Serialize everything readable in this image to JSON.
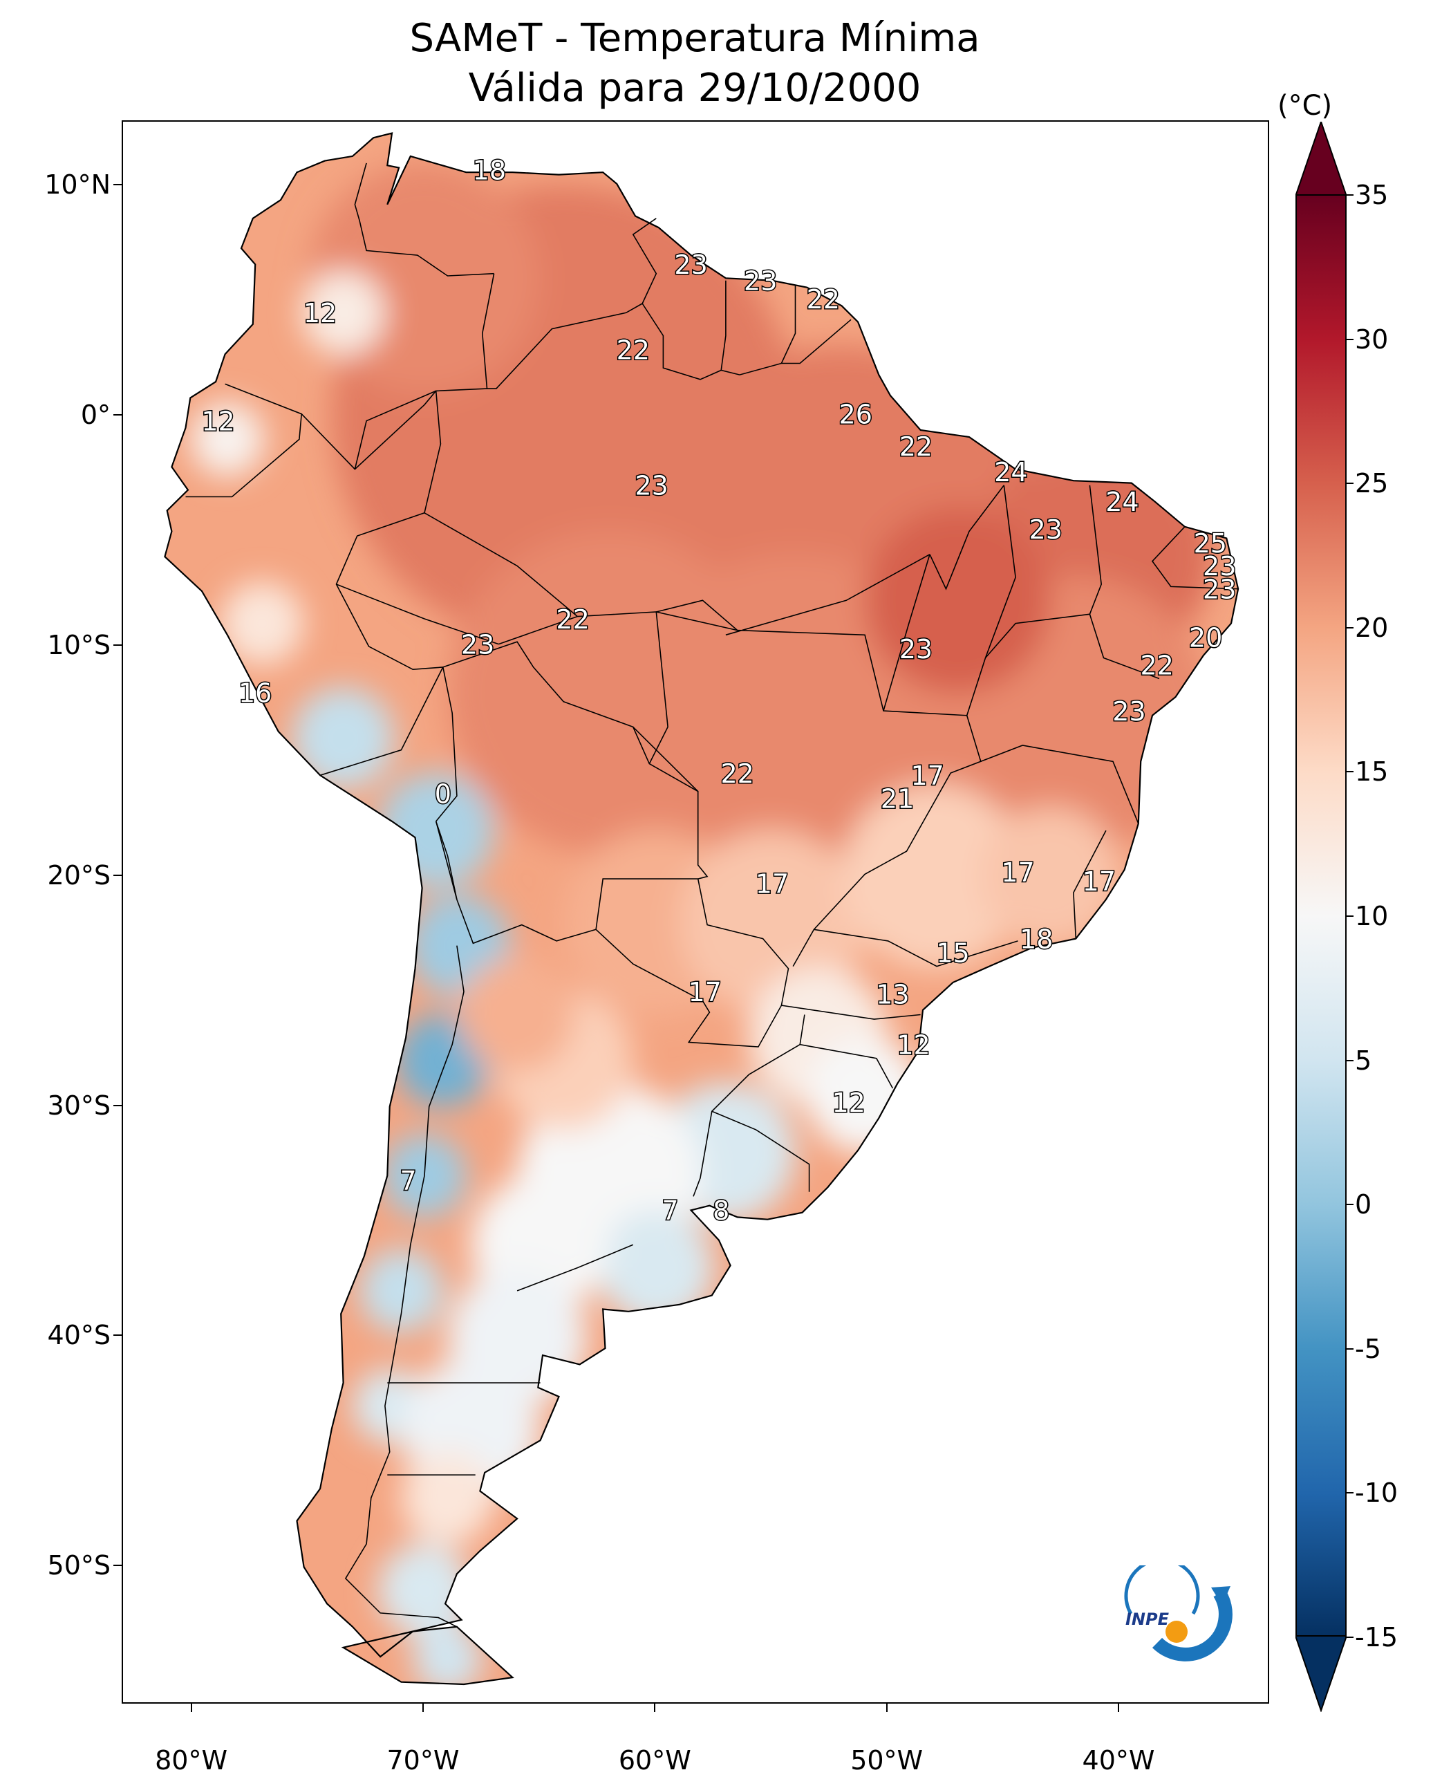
{
  "title": {
    "line1": "SAMeT - Temperatura Mínima",
    "line2": "Válida para 29/10/2000"
  },
  "axes": {
    "lat_labels": [
      "10°N",
      "0°",
      "10°S",
      "20°S",
      "30°S",
      "40°S",
      "50°S"
    ],
    "lat_values": [
      10,
      0,
      -10,
      -20,
      -30,
      -40,
      -50
    ],
    "lon_labels": [
      "80°W",
      "70°W",
      "60°W",
      "50°W",
      "40°W"
    ],
    "lon_values": [
      -80,
      -70,
      -60,
      -50,
      -40
    ],
    "lon_range": [
      -83,
      -33.5
    ],
    "lat_range": [
      -56,
      12.8
    ]
  },
  "colorbar": {
    "unit": "(°C)",
    "tick_labels": [
      "35",
      "30",
      "25",
      "20",
      "15",
      "10",
      "5",
      "0",
      "-5",
      "-10",
      "-15"
    ],
    "tick_values": [
      35,
      30,
      25,
      20,
      15,
      10,
      5,
      0,
      -5,
      -10,
      -15
    ],
    "range": [
      -15,
      35
    ],
    "extend": "both",
    "cmap": "RdBu_r",
    "colors": [
      "#053061",
      "#2166ac",
      "#4393c3",
      "#92c5de",
      "#d1e5f0",
      "#f7f7f7",
      "#fddbc7",
      "#f4a582",
      "#d6604d",
      "#b2182b",
      "#67001f"
    ]
  },
  "map_labels": [
    {
      "text": "18",
      "lon": -67.2,
      "lat": 10.6
    },
    {
      "text": "12",
      "lon": -74.5,
      "lat": 4.4
    },
    {
      "text": "12",
      "lon": -78.9,
      "lat": -0.3
    },
    {
      "text": "23",
      "lon": -58.5,
      "lat": 6.5
    },
    {
      "text": "23",
      "lon": -55.5,
      "lat": 5.8
    },
    {
      "text": "22",
      "lon": -52.8,
      "lat": 5.0
    },
    {
      "text": "22",
      "lon": -61.0,
      "lat": 2.8
    },
    {
      "text": "26",
      "lon": -51.4,
      "lat": 0.0
    },
    {
      "text": "22",
      "lon": -48.8,
      "lat": -1.4
    },
    {
      "text": "23",
      "lon": -60.2,
      "lat": -3.1
    },
    {
      "text": "24",
      "lon": -44.7,
      "lat": -2.5
    },
    {
      "text": "24",
      "lon": -39.9,
      "lat": -3.8
    },
    {
      "text": "23",
      "lon": -43.2,
      "lat": -5.0
    },
    {
      "text": "25",
      "lon": -36.1,
      "lat": -5.6
    },
    {
      "text": "23",
      "lon": -35.7,
      "lat": -6.6
    },
    {
      "text": "23",
      "lon": -35.7,
      "lat": -7.6
    },
    {
      "text": "22",
      "lon": -63.6,
      "lat": -8.9
    },
    {
      "text": "23",
      "lon": -67.7,
      "lat": -10.0
    },
    {
      "text": "23",
      "lon": -48.8,
      "lat": -10.2
    },
    {
      "text": "20",
      "lon": -36.3,
      "lat": -9.7
    },
    {
      "text": "22",
      "lon": -38.4,
      "lat": -10.9
    },
    {
      "text": "16",
      "lon": -77.3,
      "lat": -12.1
    },
    {
      "text": "23",
      "lon": -39.6,
      "lat": -12.9
    },
    {
      "text": "0",
      "lon": -69.2,
      "lat": -16.5
    },
    {
      "text": "22",
      "lon": -56.5,
      "lat": -15.6
    },
    {
      "text": "17",
      "lon": -48.3,
      "lat": -15.7
    },
    {
      "text": "21",
      "lon": -49.6,
      "lat": -16.7
    },
    {
      "text": "17",
      "lon": -55.0,
      "lat": -20.4
    },
    {
      "text": "17",
      "lon": -44.4,
      "lat": -19.9
    },
    {
      "text": "17",
      "lon": -40.9,
      "lat": -20.3
    },
    {
      "text": "15",
      "lon": -47.2,
      "lat": -23.4
    },
    {
      "text": "18",
      "lon": -43.6,
      "lat": -22.8
    },
    {
      "text": "17",
      "lon": -57.9,
      "lat": -25.1
    },
    {
      "text": "13",
      "lon": -49.8,
      "lat": -25.2
    },
    {
      "text": "12",
      "lon": -48.9,
      "lat": -27.4
    },
    {
      "text": "12",
      "lon": -51.7,
      "lat": -29.9
    },
    {
      "text": "7",
      "lon": -70.7,
      "lat": -33.3
    },
    {
      "text": "7",
      "lon": -59.4,
      "lat": -34.6
    },
    {
      "text": "8",
      "lon": -57.2,
      "lat": -34.6
    }
  ],
  "logo": {
    "text": "INPE"
  }
}
